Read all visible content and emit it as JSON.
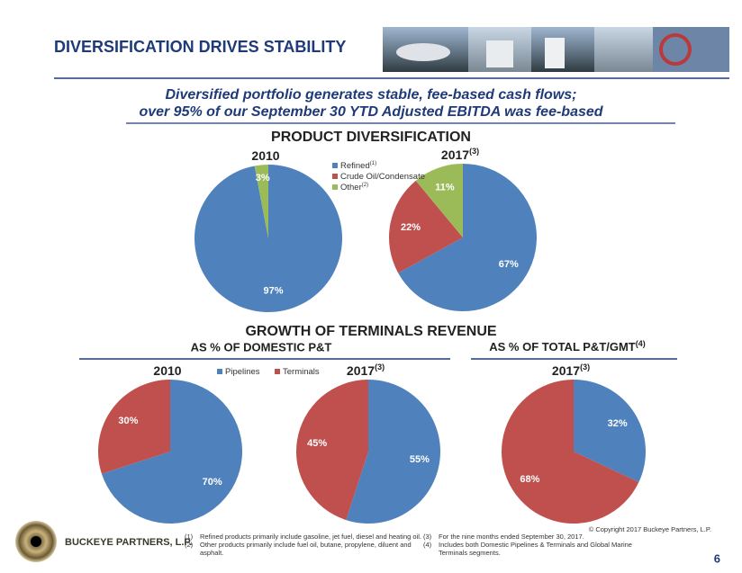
{
  "header": {
    "title": "DIVERSIFICATION DRIVES STABILITY",
    "subtitle": [
      "Diversified portfolio generates stable, fee-based cash flows;",
      "over 95% of our September 30 YTD Adjusted EBITDA was fee-based"
    ]
  },
  "sections": {
    "product": "PRODUCT DIVERSIFICATION",
    "terminals": "GROWTH OF TERMINALS REVENUE",
    "domestic": "AS % OF DOMESTIC P&T",
    "total": "AS % OF TOTAL P&T/GMT",
    "total_note": "(4)"
  },
  "chart_data": [
    {
      "type": "pie",
      "title": "2010",
      "categories": [
        "Refined",
        "Other"
      ],
      "values": [
        97,
        3
      ],
      "value_labels": [
        "97%",
        "3%"
      ],
      "colors": [
        "#4f81bd",
        "#9bbb59"
      ],
      "legend": false
    },
    {
      "type": "pie",
      "title": "2017",
      "title_note": "(3)",
      "categories": [
        "Refined",
        "Crude Oil/Condensate",
        "Other"
      ],
      "legend_notes": [
        "(1)",
        null,
        "(2)"
      ],
      "values": [
        67,
        22,
        11
      ],
      "value_labels": [
        "67%",
        "22%",
        "11%"
      ],
      "colors": [
        "#4f81bd",
        "#c0504d",
        "#9bbb59"
      ],
      "legend": true,
      "legend_position": "left"
    },
    {
      "type": "pie",
      "title": "2010",
      "categories": [
        "Pipelines",
        "Terminals"
      ],
      "values": [
        70,
        30
      ],
      "value_labels": [
        "70%",
        "30%"
      ],
      "colors": [
        "#4f81bd",
        "#c0504d"
      ],
      "legend": true,
      "legend_position": "top-right"
    },
    {
      "type": "pie",
      "title": "2017",
      "title_note": "(3)",
      "categories": [
        "Pipelines",
        "Terminals"
      ],
      "values": [
        55,
        45
      ],
      "value_labels": [
        "55%",
        "45%"
      ],
      "colors": [
        "#4f81bd",
        "#c0504d"
      ],
      "legend": false
    },
    {
      "type": "pie",
      "title": "2017",
      "title_note": "(3)",
      "categories": [
        "Pipelines",
        "Terminals"
      ],
      "values": [
        32,
        68
      ],
      "value_labels": [
        "32%",
        "68%"
      ],
      "colors": [
        "#4f81bd",
        "#c0504d"
      ],
      "legend": false
    }
  ],
  "footer": {
    "company": "BUCKEYE PARTNERS, L.P.",
    "notes": [
      {
        "num": "(1)",
        "text": [
          "Refined products primarily include gasoline, jet fuel, diesel and heating oil."
        ]
      },
      {
        "num": "(2)",
        "text": [
          "Other products primarily include fuel oil, butane, propylene, diluent and",
          "asphalt."
        ]
      },
      {
        "num": "(3)",
        "text": [
          "For the nine months ended September 30, 2017."
        ]
      },
      {
        "num": "(4)",
        "text": [
          "Includes both Domestic Pipelines & Terminals and Global Marine",
          "Terminals segments."
        ]
      }
    ],
    "copyright": "© Copyright 2017 Buckeye Partners, L.P.",
    "page": "6"
  }
}
